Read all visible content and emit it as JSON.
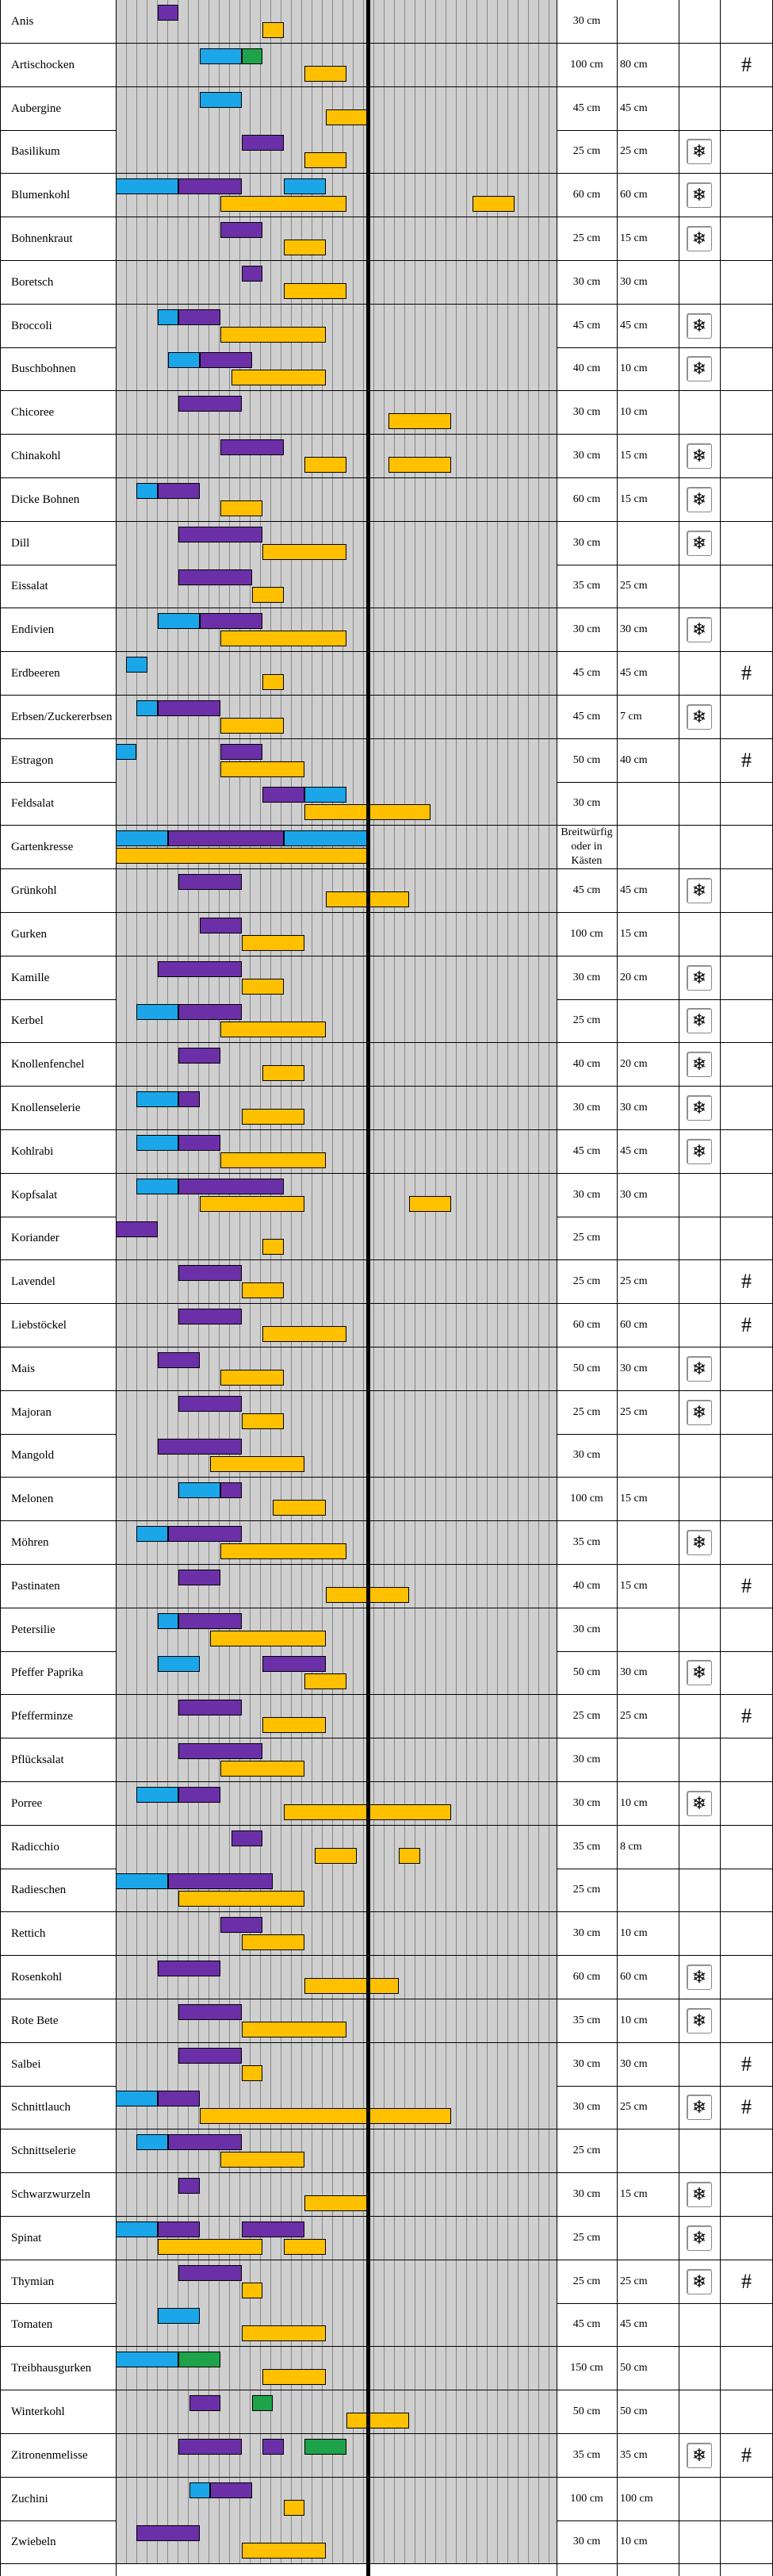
{
  "rows": [
    {
      "name": "Anis",
      "abstand": "30 cm",
      "reihe": "",
      "frost": false,
      "hash": false,
      "bars": [
        [
          2,
          3,
          "pu"
        ],
        [
          7,
          8,
          "ye"
        ]
      ]
    },
    {
      "name": "Artischocken",
      "abstand": "100 cm",
      "reihe": "80 cm",
      "frost": false,
      "hash": true,
      "bars": [
        [
          4,
          6,
          "bl"
        ],
        [
          6,
          7,
          "gr"
        ],
        [
          9,
          11,
          "ye"
        ]
      ]
    },
    {
      "name": "Aubergine",
      "abstand": "45 cm",
      "reihe": "45 cm",
      "frost": false,
      "hash": false,
      "bars": [
        [
          4,
          6,
          "bl"
        ],
        [
          10,
          12,
          "ye"
        ]
      ]
    },
    {
      "name": "Basilikum",
      "abstand": "25 cm",
      "reihe": "25 cm",
      "frost": true,
      "hash": false,
      "bars": [
        [
          6,
          8,
          "pu"
        ],
        [
          9,
          11,
          "ye"
        ]
      ]
    },
    {
      "name": "Blumenkohl",
      "abstand": "60 cm",
      "reihe": "60 cm",
      "frost": true,
      "hash": false,
      "bars": [
        [
          0,
          3,
          "bl"
        ],
        [
          3,
          6,
          "pu"
        ],
        [
          8,
          10,
          "bl"
        ],
        [
          5,
          11,
          "ye"
        ],
        [
          17,
          19,
          "ye"
        ]
      ]
    },
    {
      "name": "Bohnenkraut",
      "abstand": "25 cm",
      "reihe": "15 cm",
      "frost": true,
      "hash": false,
      "bars": [
        [
          5,
          7,
          "pu"
        ],
        [
          8,
          10,
          "ye"
        ]
      ]
    },
    {
      "name": "Boretsch",
      "abstand": "30 cm",
      "reihe": "30 cm",
      "frost": false,
      "hash": false,
      "bars": [
        [
          6,
          7,
          "pu"
        ],
        [
          8,
          11,
          "ye"
        ]
      ]
    },
    {
      "name": "Broccoli",
      "abstand": "45 cm",
      "reihe": "45 cm",
      "frost": true,
      "hash": false,
      "bars": [
        [
          2,
          3,
          "bl"
        ],
        [
          3,
          5,
          "pu"
        ],
        [
          5,
          10,
          "ye"
        ]
      ]
    },
    {
      "name": "Buschbohnen",
      "abstand": "40 cm",
      "reihe": "10 cm",
      "frost": true,
      "hash": false,
      "bars": [
        [
          2.5,
          4,
          "bl"
        ],
        [
          4,
          6.5,
          "pu"
        ],
        [
          5.5,
          10,
          "ye"
        ]
      ]
    },
    {
      "name": "Chicoree",
      "abstand": "30 cm",
      "reihe": "10 cm",
      "frost": false,
      "hash": false,
      "bars": [
        [
          3,
          6,
          "pu"
        ],
        [
          13,
          16,
          "ye"
        ]
      ]
    },
    {
      "name": "Chinakohl",
      "abstand": "30 cm",
      "reihe": "15 cm",
      "frost": true,
      "hash": false,
      "bars": [
        [
          5,
          8,
          "pu"
        ],
        [
          9,
          11,
          "ye"
        ],
        [
          13,
          16,
          "ye"
        ]
      ]
    },
    {
      "name": "Dicke Bohnen",
      "abstand": "60 cm",
      "reihe": "15 cm",
      "frost": true,
      "hash": false,
      "bars": [
        [
          1,
          2,
          "bl"
        ],
        [
          2,
          4,
          "pu"
        ],
        [
          5,
          7,
          "ye"
        ]
      ]
    },
    {
      "name": "Dill",
      "abstand": "30 cm",
      "reihe": "",
      "frost": true,
      "hash": false,
      "bars": [
        [
          3,
          7,
          "pu"
        ],
        [
          7,
          11,
          "ye"
        ]
      ]
    },
    {
      "name": "Eissalat",
      "abstand": "35 cm",
      "reihe": "25 cm",
      "frost": false,
      "hash": false,
      "bars": [
        [
          3,
          6.5,
          "pu"
        ],
        [
          6.5,
          8,
          "ye"
        ]
      ]
    },
    {
      "name": "Endivien",
      "abstand": "30 cm",
      "reihe": "30 cm",
      "frost": true,
      "hash": false,
      "bars": [
        [
          2,
          4,
          "bl"
        ],
        [
          4,
          7,
          "pu"
        ],
        [
          5,
          11,
          "ye"
        ]
      ]
    },
    {
      "name": "Erdbeeren",
      "abstand": "45 cm",
      "reihe": "45 cm",
      "frost": false,
      "hash": true,
      "bars": [
        [
          0.5,
          1.5,
          "bl"
        ],
        [
          7,
          8,
          "ye"
        ]
      ]
    },
    {
      "name": "Erbsen/Zuckererbsen",
      "abstand": "45 cm",
      "reihe": "7 cm",
      "frost": true,
      "hash": false,
      "bars": [
        [
          1,
          2,
          "bl"
        ],
        [
          2,
          5,
          "pu"
        ],
        [
          5,
          8,
          "ye"
        ]
      ]
    },
    {
      "name": "Estragon",
      "abstand": "50 cm",
      "reihe": "40 cm",
      "frost": false,
      "hash": true,
      "bars": [
        [
          0,
          1,
          "bl"
        ],
        [
          5,
          7,
          "pu"
        ],
        [
          5,
          9,
          "ye"
        ]
      ]
    },
    {
      "name": "Feldsalat",
      "abstand": "30 cm",
      "reihe": "",
      "frost": false,
      "hash": false,
      "bars": [
        [
          7,
          9,
          "pu"
        ],
        [
          9,
          11,
          "bl"
        ],
        [
          9,
          15,
          "ye"
        ]
      ]
    },
    {
      "name": "Gartenkresse",
      "abstand": "Breitwürfig oder in Kästen",
      "reihe": "",
      "frost": false,
      "hash": false,
      "bars": [
        [
          0,
          2.5,
          "bl"
        ],
        [
          2.5,
          8,
          "pu"
        ],
        [
          8,
          12,
          "bl"
        ],
        [
          0,
          12,
          "ye"
        ]
      ]
    },
    {
      "name": "Grünkohl",
      "abstand": "45 cm",
      "reihe": "45 cm",
      "frost": true,
      "hash": false,
      "bars": [
        [
          3,
          6,
          "pu"
        ],
        [
          10,
          14,
          "ye"
        ]
      ]
    },
    {
      "name": "Gurken",
      "abstand": "100 cm",
      "reihe": "15 cm",
      "frost": false,
      "hash": false,
      "bars": [
        [
          4,
          6,
          "pu"
        ],
        [
          6,
          9,
          "ye"
        ]
      ]
    },
    {
      "name": "Kamille",
      "abstand": "30 cm",
      "reihe": "20 cm",
      "frost": true,
      "hash": false,
      "bars": [
        [
          2,
          6,
          "pu"
        ],
        [
          6,
          8,
          "ye"
        ]
      ]
    },
    {
      "name": "Kerbel",
      "abstand": "25 cm",
      "reihe": "",
      "frost": true,
      "hash": false,
      "bars": [
        [
          1,
          3,
          "bl"
        ],
        [
          3,
          6,
          "pu"
        ],
        [
          5,
          10,
          "ye"
        ]
      ]
    },
    {
      "name": "Knollenfenchel",
      "abstand": "40 cm",
      "reihe": "20 cm",
      "frost": true,
      "hash": false,
      "bars": [
        [
          3,
          5,
          "pu"
        ],
        [
          7,
          9,
          "ye"
        ]
      ]
    },
    {
      "name": "Knollenselerie",
      "abstand": "30 cm",
      "reihe": "30 cm",
      "frost": true,
      "hash": false,
      "bars": [
        [
          1,
          3,
          "bl"
        ],
        [
          3,
          4,
          "pu"
        ],
        [
          6,
          9,
          "ye"
        ]
      ]
    },
    {
      "name": "Kohlrabi",
      "abstand": "45 cm",
      "reihe": "45 cm",
      "frost": true,
      "hash": false,
      "bars": [
        [
          1,
          3,
          "bl"
        ],
        [
          3,
          5,
          "pu"
        ],
        [
          5,
          10,
          "ye"
        ]
      ]
    },
    {
      "name": "Kopfsalat",
      "abstand": "30 cm",
      "reihe": "30 cm",
      "frost": false,
      "hash": false,
      "bars": [
        [
          1,
          3,
          "bl"
        ],
        [
          3,
          8,
          "pu"
        ],
        [
          4,
          9,
          "ye"
        ],
        [
          14,
          16,
          "ye"
        ]
      ]
    },
    {
      "name": "Koriander",
      "abstand": "25 cm",
      "reihe": "",
      "frost": false,
      "hash": false,
      "bars": [
        [
          0,
          2,
          "pu"
        ],
        [
          7,
          8,
          "ye"
        ]
      ]
    },
    {
      "name": "Lavendel",
      "abstand": "25 cm",
      "reihe": "25 cm",
      "frost": false,
      "hash": true,
      "bars": [
        [
          3,
          6,
          "pu"
        ],
        [
          6,
          8,
          "ye"
        ]
      ]
    },
    {
      "name": "Liebstöckel",
      "abstand": "60 cm",
      "reihe": "60 cm",
      "frost": false,
      "hash": true,
      "bars": [
        [
          3,
          6,
          "pu"
        ],
        [
          7,
          11,
          "ye"
        ]
      ]
    },
    {
      "name": "Mais",
      "abstand": "50 cm",
      "reihe": "30 cm",
      "frost": true,
      "hash": false,
      "bars": [
        [
          2,
          4,
          "pu"
        ],
        [
          5,
          8,
          "ye"
        ]
      ]
    },
    {
      "name": "Majoran",
      "abstand": "25 cm",
      "reihe": "25 cm",
      "frost": true,
      "hash": false,
      "bars": [
        [
          3,
          6,
          "pu"
        ],
        [
          6,
          8,
          "ye"
        ]
      ]
    },
    {
      "name": "Mangold",
      "abstand": "30 cm",
      "reihe": "",
      "frost": false,
      "hash": false,
      "bars": [
        [
          2,
          6,
          "pu"
        ],
        [
          4.5,
          9,
          "ye"
        ]
      ]
    },
    {
      "name": "Melonen",
      "abstand": "100 cm",
      "reihe": "15 cm",
      "frost": false,
      "hash": false,
      "bars": [
        [
          3,
          5,
          "bl"
        ],
        [
          5,
          6,
          "pu"
        ],
        [
          7.5,
          10,
          "ye"
        ]
      ]
    },
    {
      "name": "Möhren",
      "abstand": "35 cm",
      "reihe": "",
      "frost": true,
      "hash": false,
      "bars": [
        [
          1,
          2.5,
          "bl"
        ],
        [
          2.5,
          6,
          "pu"
        ],
        [
          5,
          11,
          "ye"
        ]
      ]
    },
    {
      "name": "Pastinaten",
      "abstand": "40 cm",
      "reihe": "15 cm",
      "frost": false,
      "hash": true,
      "bars": [
        [
          3,
          5,
          "pu"
        ],
        [
          10,
          14,
          "ye"
        ]
      ]
    },
    {
      "name": "Petersilie",
      "abstand": "30 cm",
      "reihe": "",
      "frost": false,
      "hash": false,
      "bars": [
        [
          2,
          3,
          "bl"
        ],
        [
          3,
          6,
          "pu"
        ],
        [
          4.5,
          10,
          "ye"
        ]
      ]
    },
    {
      "name": "Pfeffer Paprika",
      "abstand": "50 cm",
      "reihe": "30 cm",
      "frost": true,
      "hash": false,
      "bars": [
        [
          2,
          4,
          "bl"
        ],
        [
          7,
          10,
          "pu"
        ],
        [
          9,
          11,
          "ye"
        ]
      ]
    },
    {
      "name": "Pfefferminze",
      "abstand": "25 cm",
      "reihe": "25 cm",
      "frost": false,
      "hash": true,
      "bars": [
        [
          3,
          6,
          "pu"
        ],
        [
          7,
          10,
          "ye"
        ]
      ]
    },
    {
      "name": "Pflücksalat",
      "abstand": "30 cm",
      "reihe": "",
      "frost": false,
      "hash": false,
      "bars": [
        [
          3,
          7,
          "pu"
        ],
        [
          5,
          9,
          "ye"
        ]
      ]
    },
    {
      "name": "Porree",
      "abstand": "30 cm",
      "reihe": "10 cm",
      "frost": true,
      "hash": false,
      "bars": [
        [
          1,
          3,
          "bl"
        ],
        [
          3,
          5,
          "pu"
        ],
        [
          8,
          16,
          "ye"
        ]
      ]
    },
    {
      "name": "Radicchio",
      "abstand": "35 cm",
      "reihe": "8 cm",
      "frost": false,
      "hash": false,
      "bars": [
        [
          5.5,
          7,
          "pu"
        ],
        [
          9.5,
          11.5,
          "ye"
        ],
        [
          13.5,
          14.5,
          "ye"
        ]
      ]
    },
    {
      "name": "Radieschen",
      "abstand": "25 cm",
      "reihe": "",
      "frost": false,
      "hash": false,
      "bars": [
        [
          0,
          2.5,
          "bl"
        ],
        [
          2.5,
          7.5,
          "pu"
        ],
        [
          3,
          9,
          "ye"
        ]
      ]
    },
    {
      "name": "Rettich",
      "abstand": "30 cm",
      "reihe": "10 cm",
      "frost": false,
      "hash": false,
      "bars": [
        [
          5,
          7,
          "pu"
        ],
        [
          6,
          9,
          "ye"
        ]
      ]
    },
    {
      "name": "Rosenkohl",
      "abstand": "60 cm",
      "reihe": "60 cm",
      "frost": true,
      "hash": false,
      "bars": [
        [
          2,
          5,
          "pu"
        ],
        [
          9,
          13.5,
          "ye"
        ]
      ]
    },
    {
      "name": "Rote Bete",
      "abstand": "35 cm",
      "reihe": "10 cm",
      "frost": true,
      "hash": false,
      "bars": [
        [
          3,
          6,
          "pu"
        ],
        [
          6,
          11,
          "ye"
        ]
      ]
    },
    {
      "name": "Salbei",
      "abstand": "30 cm",
      "reihe": "30 cm",
      "frost": false,
      "hash": true,
      "bars": [
        [
          3,
          6,
          "pu"
        ],
        [
          6,
          7,
          "ye"
        ]
      ]
    },
    {
      "name": "Schnittlauch",
      "abstand": "30 cm",
      "reihe": "25 cm",
      "frost": true,
      "hash": true,
      "bars": [
        [
          0,
          2,
          "bl"
        ],
        [
          2,
          4,
          "pu"
        ],
        [
          4,
          16,
          "ye"
        ]
      ]
    },
    {
      "name": "Schnittselerie",
      "abstand": "25 cm",
      "reihe": "",
      "frost": false,
      "hash": false,
      "bars": [
        [
          1,
          2.5,
          "bl"
        ],
        [
          2.5,
          6,
          "pu"
        ],
        [
          5,
          9,
          "ye"
        ]
      ]
    },
    {
      "name": "Schwarzwurzeln",
      "abstand": "30 cm",
      "reihe": "15 cm",
      "frost": true,
      "hash": false,
      "bars": [
        [
          3,
          4,
          "pu"
        ],
        [
          9,
          12,
          "ye"
        ]
      ]
    },
    {
      "name": "Spinat",
      "abstand": "25 cm",
      "reihe": "",
      "frost": true,
      "hash": false,
      "bars": [
        [
          0,
          2,
          "bl"
        ],
        [
          2,
          4,
          "pu"
        ],
        [
          6,
          9,
          "pu"
        ],
        [
          2,
          7,
          "ye"
        ],
        [
          8,
          10,
          "ye"
        ]
      ]
    },
    {
      "name": "Thymian",
      "abstand": "25 cm",
      "reihe": "25 cm",
      "frost": true,
      "hash": true,
      "bars": [
        [
          3,
          6,
          "pu"
        ],
        [
          6,
          7,
          "ye"
        ]
      ]
    },
    {
      "name": "Tomaten",
      "abstand": "45 cm",
      "reihe": "45 cm",
      "frost": false,
      "hash": false,
      "bars": [
        [
          2,
          4,
          "bl"
        ],
        [
          6,
          10,
          "ye"
        ]
      ]
    },
    {
      "name": "Treibhausgurken",
      "abstand": "150 cm",
      "reihe": "50 cm",
      "frost": false,
      "hash": false,
      "bars": [
        [
          0,
          3,
          "bl"
        ],
        [
          3,
          5,
          "gr"
        ],
        [
          7,
          10,
          "ye"
        ]
      ]
    },
    {
      "name": "Winterkohl",
      "abstand": "50 cm",
      "reihe": "50 cm",
      "frost": false,
      "hash": false,
      "bars": [
        [
          3.5,
          5,
          "pu"
        ],
        [
          6.5,
          7.5,
          "gr"
        ],
        [
          11,
          14,
          "ye"
        ]
      ]
    },
    {
      "name": "Zitronenmelisse",
      "abstand": "35 cm",
      "reihe": "35 cm",
      "frost": true,
      "hash": true,
      "bars": [
        [
          3,
          6,
          "pu"
        ],
        [
          7,
          8,
          "pu"
        ],
        [
          9,
          11,
          "gr"
        ]
      ]
    },
    {
      "name": "Zuchini",
      "abstand": "100 cm",
      "reihe": "100 cm",
      "frost": false,
      "hash": false,
      "bars": [
        [
          3.5,
          4.5,
          "bl"
        ],
        [
          4.5,
          6.5,
          "pu"
        ],
        [
          8,
          9,
          "ye"
        ]
      ]
    },
    {
      "name": "Zwiebeln",
      "abstand": "30 cm",
      "reihe": "10 cm",
      "frost": false,
      "hash": false,
      "bars": [
        [
          1,
          4,
          "pu"
        ],
        [
          6,
          10,
          "ye"
        ]
      ]
    }
  ],
  "symbols": {
    "frost": "❄",
    "hash": "#"
  },
  "colors": {
    "bl": "#1aa6e8",
    "pu": "#6b30a8",
    "ye": "#ffc000",
    "gr": "#1ea34a"
  }
}
